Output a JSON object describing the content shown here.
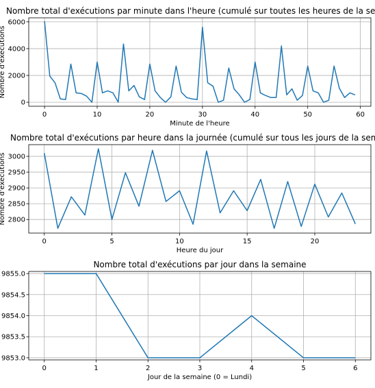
{
  "chart_data": [
    {
      "type": "line",
      "title": "Nombre total d'exécutions par minute dans l'heure (cumulé sur toutes les heures de la semaine)",
      "xlabel": "Minute de l'heure",
      "ylabel": "Nombre d'exécutions",
      "xlim": [
        -3,
        62
      ],
      "ylim": [
        -300,
        6300
      ],
      "xticks": [
        0,
        10,
        20,
        30,
        40,
        50,
        60
      ],
      "xtick_labels": [
        "0",
        "10",
        "20",
        "30",
        "40",
        "50",
        "60"
      ],
      "yticks": [
        0,
        2000,
        4000,
        6000
      ],
      "ytick_labels": [
        "0",
        "2000",
        "4000",
        "6000"
      ],
      "grid": true,
      "series_color": "#1f77b4",
      "x": [
        0,
        1,
        2,
        3,
        4,
        5,
        6,
        7,
        8,
        9,
        10,
        11,
        12,
        13,
        14,
        15,
        16,
        17,
        18,
        19,
        20,
        21,
        22,
        23,
        24,
        25,
        26,
        27,
        28,
        29,
        30,
        31,
        32,
        33,
        34,
        35,
        36,
        37,
        38,
        39,
        40,
        41,
        42,
        43,
        44,
        45,
        46,
        47,
        48,
        49,
        50,
        51,
        52,
        53,
        54,
        55,
        56,
        57,
        58,
        59
      ],
      "y": [
        6050,
        1950,
        1450,
        250,
        200,
        2850,
        700,
        650,
        450,
        0,
        3000,
        700,
        850,
        700,
        0,
        4350,
        850,
        1250,
        400,
        200,
        2850,
        850,
        350,
        0,
        400,
        2700,
        750,
        350,
        250,
        200,
        5600,
        1450,
        1200,
        0,
        150,
        2550,
        1000,
        550,
        0,
        200,
        3000,
        700,
        500,
        350,
        350,
        4200,
        550,
        1000,
        150,
        500,
        2700,
        850,
        700,
        0,
        150,
        2700,
        1050,
        350,
        700,
        550
      ]
    },
    {
      "type": "line",
      "title": "Nombre total d'exécutions par heure dans la journée (cumulé sur tous les jours de la semaine)",
      "xlabel": "Heure du jour",
      "ylabel": "Nombre d'exécutions",
      "xlim": [
        -1.15,
        24.15
      ],
      "ylim": [
        2757,
        3037
      ],
      "xticks": [
        0,
        5,
        10,
        15,
        20
      ],
      "xtick_labels": [
        "0",
        "5",
        "10",
        "15",
        "20"
      ],
      "yticks": [
        2800,
        2850,
        2900,
        2950,
        3000
      ],
      "ytick_labels": [
        "2800",
        "2850",
        "2900",
        "2950",
        "3000"
      ],
      "grid": true,
      "series_color": "#1f77b4",
      "x": [
        0,
        1,
        2,
        3,
        4,
        5,
        6,
        7,
        8,
        9,
        10,
        11,
        12,
        13,
        14,
        15,
        16,
        17,
        18,
        19,
        20,
        21,
        22,
        23
      ],
      "y": [
        3010,
        2772,
        2872,
        2814,
        3024,
        2800,
        2948,
        2842,
        3019,
        2857,
        2891,
        2785,
        3017,
        2821,
        2891,
        2828,
        2927,
        2772,
        2920,
        2778,
        2912,
        2808,
        2884,
        2786
      ]
    },
    {
      "type": "line",
      "title": "Nombre total d'exécutions par jour dans la semaine",
      "xlabel": "Jour de la semaine (0 = Lundi)",
      "ylabel": "",
      "xlim": [
        -0.3,
        6.3
      ],
      "ylim": [
        9852.95,
        9855.05
      ],
      "xticks": [
        0,
        1,
        2,
        3,
        4,
        5,
        6
      ],
      "xtick_labels": [
        "0",
        "1",
        "2",
        "3",
        "4",
        "5",
        "6"
      ],
      "yticks": [
        9853.0,
        9853.5,
        9854.0,
        9854.5,
        9855.0
      ],
      "ytick_labels": [
        "9853.0",
        "9853.5",
        "9854.0",
        "9854.5",
        "9855.0"
      ],
      "grid": true,
      "series_color": "#1f77b4",
      "x": [
        0,
        1,
        2,
        3,
        4,
        5,
        6
      ],
      "y": [
        9855,
        9855,
        9853,
        9853,
        9854,
        9853,
        9853
      ]
    }
  ]
}
